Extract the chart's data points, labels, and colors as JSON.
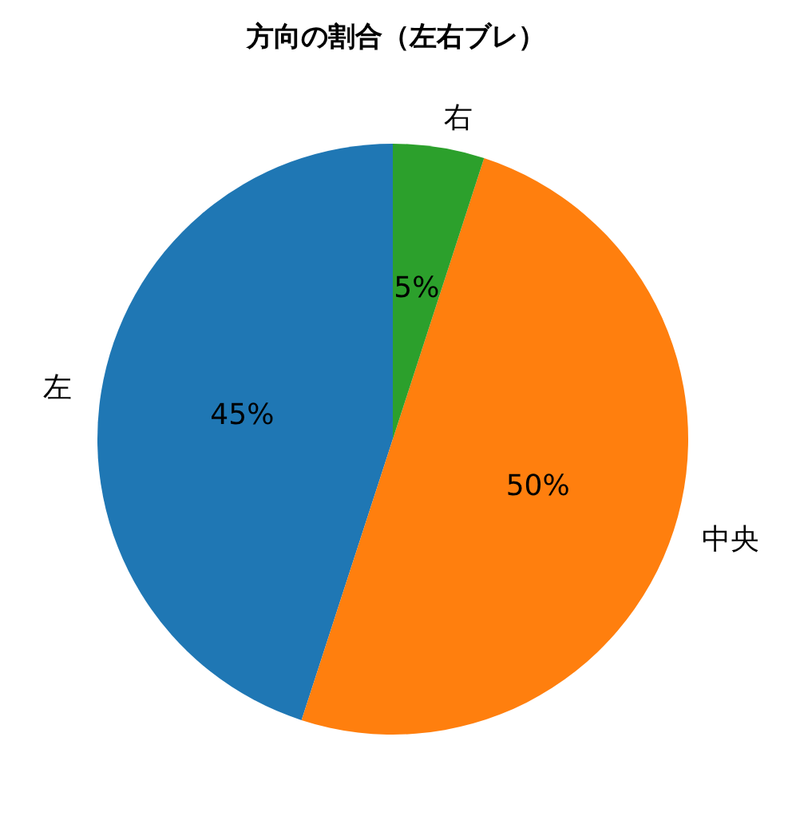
{
  "chart_data": {
    "type": "pie",
    "title": "方向の割合（左右ブレ）",
    "categories": [
      "左",
      "中央",
      "右"
    ],
    "values": [
      45,
      50,
      5
    ],
    "colors": [
      "#1f77b4",
      "#ff7f0e",
      "#2ca02c"
    ],
    "value_labels": [
      "45%",
      "50%",
      "5%"
    ],
    "legend": false
  }
}
